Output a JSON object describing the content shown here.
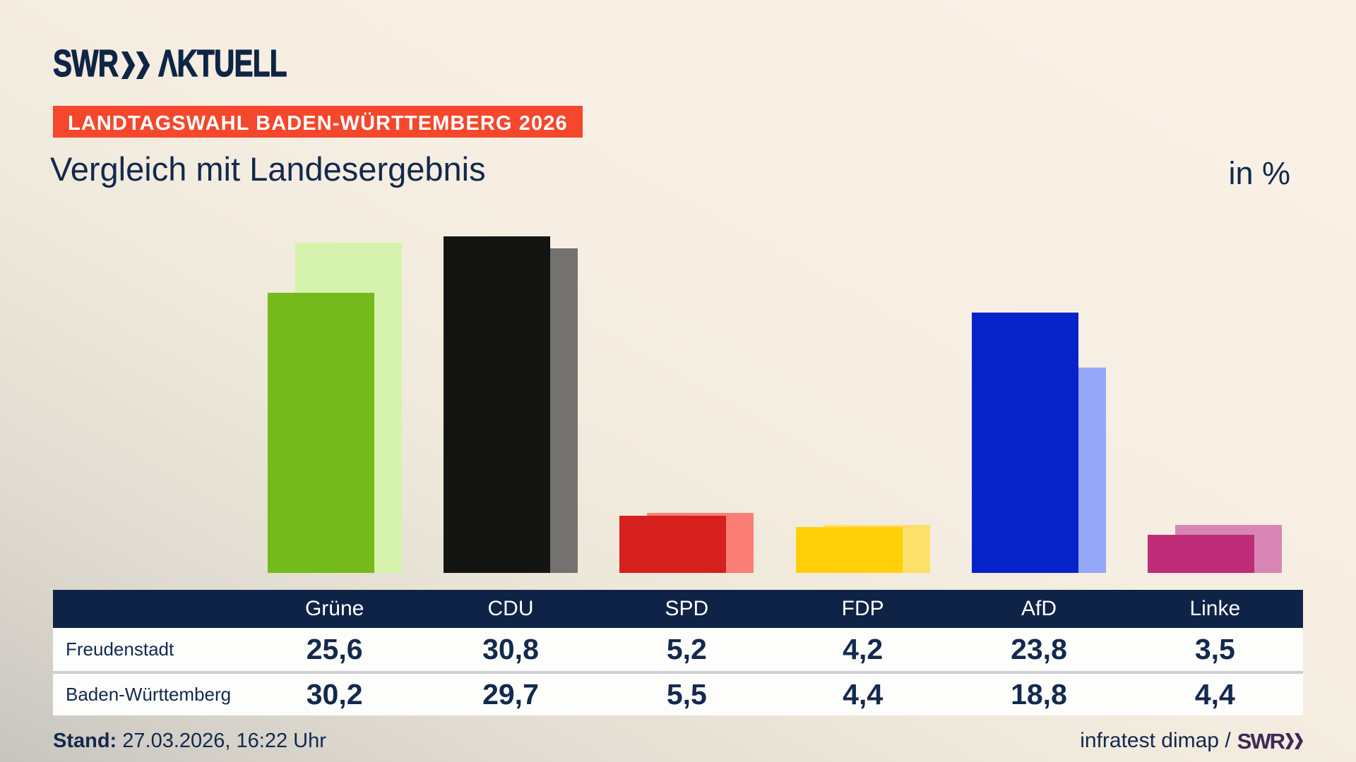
{
  "brand": {
    "logo_swr": "SWR",
    "logo_aktuell": "ΛKTUELL"
  },
  "badge": {
    "label": "LANDTAGSWAHL BADEN-WÜRTTEMBERG 2026",
    "bg": "#f4472c"
  },
  "title": "Vergleich mit Landesergebnis",
  "unit_label": "in %",
  "chart_data": {
    "type": "bar",
    "categories": [
      "Grüne",
      "CDU",
      "SPD",
      "FDP",
      "AfD",
      "Linke"
    ],
    "series": [
      {
        "name": "Freudenstadt",
        "values": [
          25.6,
          30.8,
          5.2,
          4.2,
          23.8,
          3.5
        ]
      },
      {
        "name": "Baden-Württemberg",
        "values": [
          30.2,
          29.7,
          5.5,
          4.4,
          18.8,
          4.4
        ]
      }
    ],
    "title": "Vergleich mit Landesergebnis",
    "ylabel": "in %",
    "ylim": [
      0,
      32
    ],
    "grid": false,
    "legend": "table-rows",
    "colors": {
      "Grüne": {
        "fg": "#74ba1b",
        "bg": "#d5f3ac"
      },
      "CDU": {
        "fg": "#141413",
        "bg": "#747270"
      },
      "SPD": {
        "fg": "#d6201e",
        "bg": "#fa7e75"
      },
      "FDP": {
        "fg": "#ffcf0a",
        "bg": "#fce069"
      },
      "AfD": {
        "fg": "#0523c8",
        "bg": "#96a8f9"
      },
      "Linke": {
        "fg": "#be2c77",
        "bg": "#d885b5"
      }
    }
  },
  "table": {
    "header": [
      "Grüne",
      "CDU",
      "SPD",
      "FDP",
      "AfD",
      "Linke"
    ],
    "rows": [
      {
        "label": "Freudenstadt",
        "cells": [
          "25,6",
          "30,8",
          "5,2",
          "4,2",
          "23,8",
          "3,5"
        ]
      },
      {
        "label": "Baden-Württemberg",
        "cells": [
          "30,2",
          "29,7",
          "5,5",
          "4,4",
          "18,8",
          "4,4"
        ]
      }
    ]
  },
  "footer": {
    "stand_label": "Stand:",
    "stand_value": " 27.03.2026, 16:22 Uhr",
    "source_text": "infratest dimap / ",
    "source_logo": "SWR"
  }
}
